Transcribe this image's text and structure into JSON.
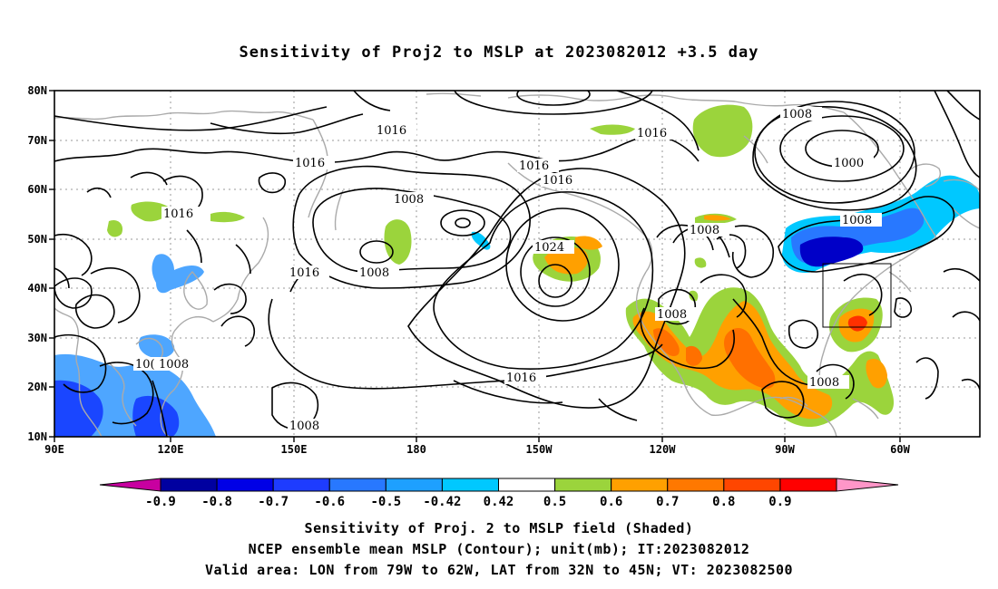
{
  "title": "Sensitivity of Proj2 to MSLP at 2023082012 +3.5 day",
  "map": {
    "lat_ticks": [
      "80N",
      "70N",
      "60N",
      "50N",
      "40N",
      "30N",
      "20N",
      "10N"
    ],
    "lon_ticks": [
      "90E",
      "120E",
      "150E",
      "180",
      "150W",
      "120W",
      "90W",
      "60W"
    ],
    "extent": {
      "lon": [
        90,
        311
      ],
      "lat": [
        10,
        80
      ]
    },
    "contour_labels": [
      "1016",
      "1016",
      "1016",
      "1016",
      "1016",
      "1016",
      "1016",
      "1008",
      "1008",
      "1008",
      "1024",
      "1008",
      "1008",
      "1000",
      "1008",
      "1008",
      "1008",
      "10(",
      "1008",
      "1016",
      "1008"
    ],
    "valid_box": {
      "lon": [
        -79,
        -62
      ],
      "lat": [
        32,
        45
      ]
    },
    "shading_colors": {
      "neg_very_strong": "#c000a0",
      "neg_strong": "#0000c8",
      "neg_mid": "#1a46ff",
      "neg_weak": "#4ea6ff",
      "neg_weakest": "#00c8ff",
      "pos_weakest": "#9bd43c",
      "pos_weak": "#ffa000",
      "pos_mid": "#ff7000",
      "pos_strong": "#ff3000",
      "pos_very_strong": "#ff0000"
    }
  },
  "colorbar": {
    "labels": [
      "-0.9",
      "-0.8",
      "-0.7",
      "-0.6",
      "-0.5",
      "-0.42",
      "0.42",
      "0.5",
      "0.6",
      "0.7",
      "0.8",
      "0.9"
    ],
    "colors": [
      "#0000a0",
      "#0000e6",
      "#1e3cff",
      "#2878ff",
      "#1ea0ff",
      "#00c8ff",
      "#ffffff",
      "#9bd43c",
      "#ffa000",
      "#ff7800",
      "#ff4600",
      "#ff0000"
    ],
    "low_end_color": "#c800a0",
    "high_end_color": "#ff96c8"
  },
  "captions": [
    "Sensitivity of Proj. 2 to MSLP field (Shaded)",
    "NCEP ensemble mean MSLP (Contour); unit(mb); IT:2023082012",
    "Valid area: LON from 79W to 62W, LAT from 32N to 45N; VT: 2023082500"
  ]
}
